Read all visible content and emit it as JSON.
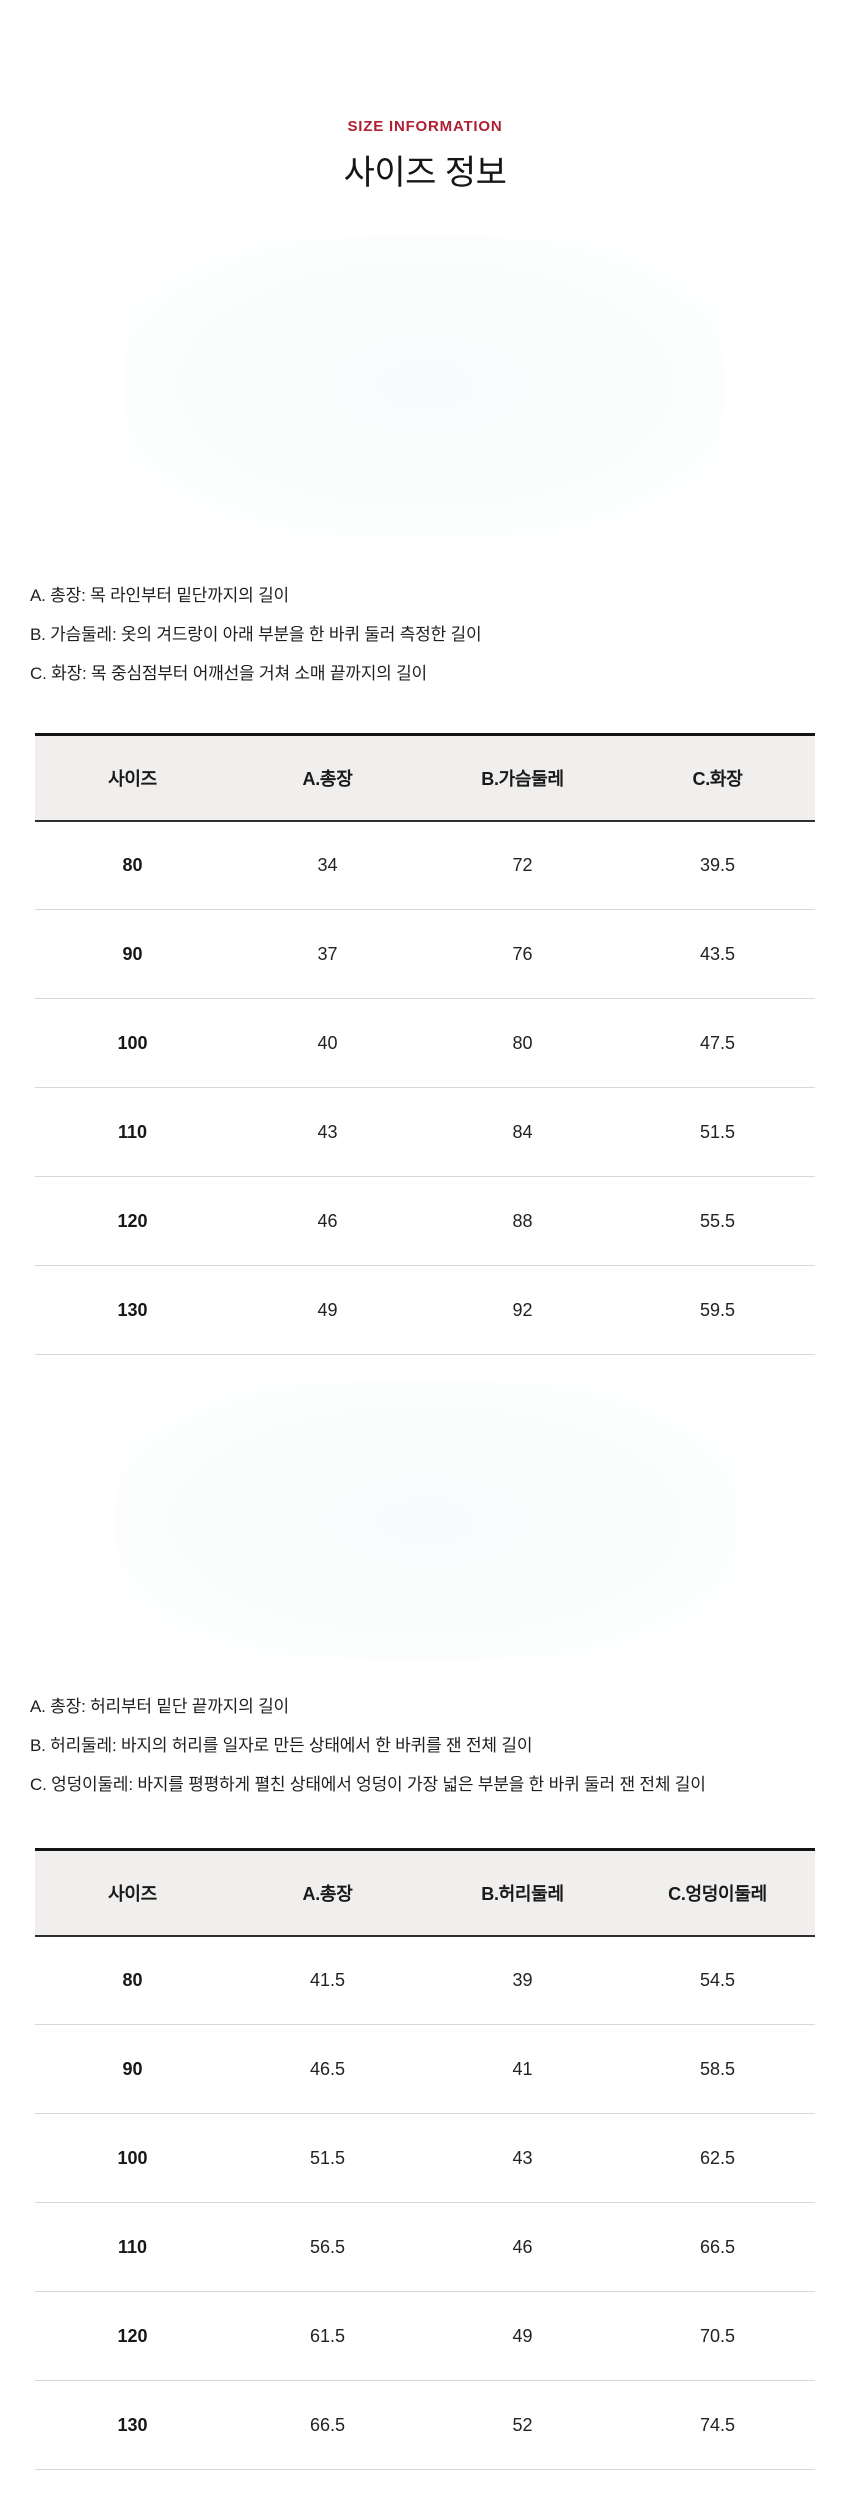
{
  "page": {
    "eyebrow": "SIZE INFORMATION",
    "title": "사이즈 정보",
    "accent_color": "#b01e32",
    "header_bg_color": "#f0efee"
  },
  "top_section": {
    "legend": [
      "A. 총장: 목 라인부터 밑단까지의 길이",
      "B. 가슴둘레: 옷의 겨드랑이 아래 부분을 한 바퀴 둘러 측정한 길이",
      "C. 화장: 목 중심점부터 어깨선을 거쳐 소매 끝까지의 길이"
    ],
    "table": {
      "headers": [
        "사이즈",
        "A.총장",
        "B.가슴둘레",
        "C.화장"
      ],
      "rows": [
        [
          "80",
          "34",
          "72",
          "39.5"
        ],
        [
          "90",
          "37",
          "76",
          "43.5"
        ],
        [
          "100",
          "40",
          "80",
          "47.5"
        ],
        [
          "110",
          "43",
          "84",
          "51.5"
        ],
        [
          "120",
          "46",
          "88",
          "55.5"
        ],
        [
          "130",
          "49",
          "92",
          "59.5"
        ]
      ]
    }
  },
  "bottom_section": {
    "legend": [
      "A. 총장: 허리부터 밑단 끝까지의 길이",
      "B. 허리둘레: 바지의 허리를 일자로 만든 상태에서 한 바퀴를 잰 전체 길이",
      "C. 엉덩이둘레: 바지를 평평하게 펼친 상태에서 엉덩이 가장 넓은 부분을 한 바퀴 둘러 잰 전체 길이"
    ],
    "table": {
      "headers": [
        "사이즈",
        "A.총장",
        "B.허리둘레",
        "C.엉덩이둘레"
      ],
      "rows": [
        [
          "80",
          "41.5",
          "39",
          "54.5"
        ],
        [
          "90",
          "46.5",
          "41",
          "58.5"
        ],
        [
          "100",
          "51.5",
          "43",
          "62.5"
        ],
        [
          "110",
          "56.5",
          "46",
          "66.5"
        ],
        [
          "120",
          "61.5",
          "49",
          "70.5"
        ],
        [
          "130",
          "66.5",
          "52",
          "74.5"
        ]
      ]
    }
  }
}
